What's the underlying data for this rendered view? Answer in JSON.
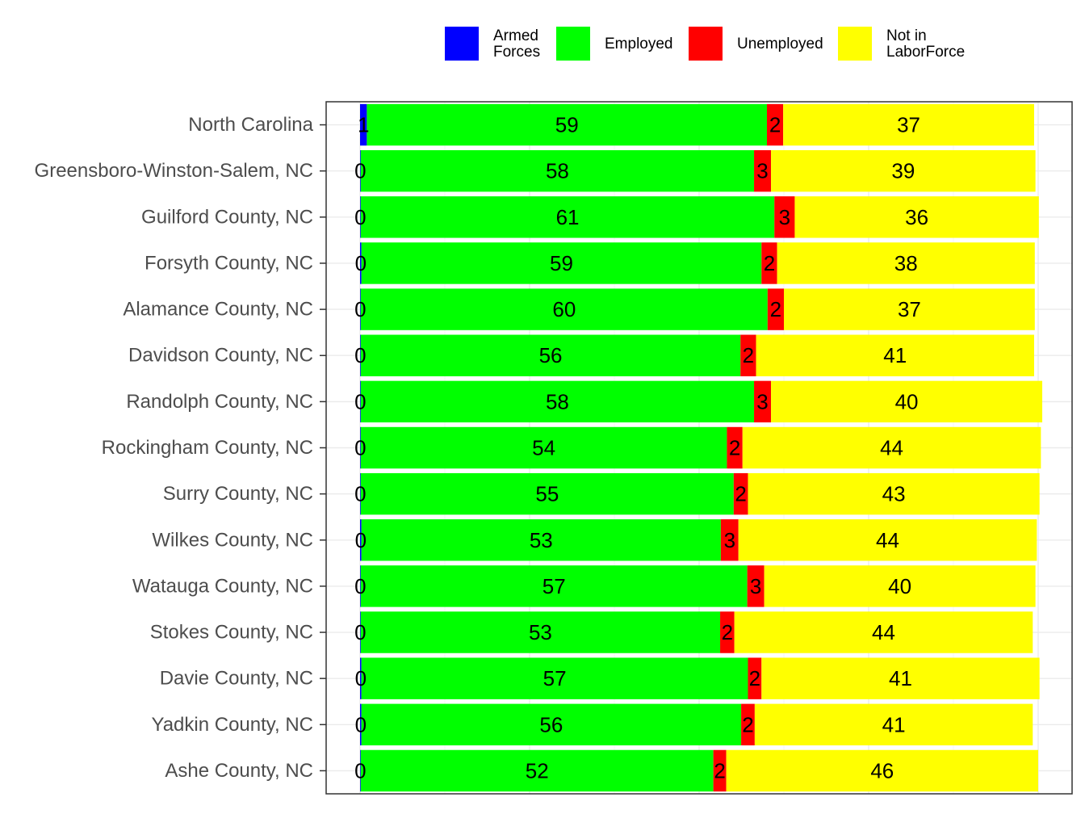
{
  "chart_data": {
    "type": "bar",
    "orientation": "horizontal",
    "stacked": true,
    "categories": [
      "North Carolina",
      "Greensboro-Winston-Salem, NC",
      "Guilford County, NC",
      "Forsyth County, NC",
      "Alamance County, NC",
      "Davidson County, NC",
      "Randolph County, NC",
      "Rockingham County, NC",
      "Surry County, NC",
      "Wilkes County, NC",
      "Watauga County, NC",
      "Stokes County, NC",
      "Davie County, NC",
      "Yadkin County, NC",
      "Ashe County, NC"
    ],
    "series": [
      {
        "name": "Armed Forces",
        "legend_lines": [
          "Armed",
          "Forces"
        ],
        "color": "#0000FF",
        "values": [
          1,
          0.1,
          0.1,
          0.2,
          0.1,
          0.1,
          0.1,
          0.1,
          0.1,
          0.2,
          0.1,
          0.1,
          0.2,
          0.2,
          0.1
        ],
        "labels": [
          "1",
          "0",
          "0",
          "0",
          "0",
          "0",
          "0",
          "0",
          "0",
          "0",
          "0",
          "0",
          "0",
          "0",
          "0"
        ]
      },
      {
        "name": "Employed",
        "legend_lines": [
          "Employed"
        ],
        "color": "#00FF00",
        "values": [
          59,
          58,
          61,
          59,
          60,
          56,
          58,
          54,
          55,
          53,
          57,
          53,
          57,
          56,
          52
        ],
        "labels": [
          "59",
          "58",
          "61",
          "59",
          "60",
          "56",
          "58",
          "54",
          "55",
          "53",
          "57",
          "53",
          "57",
          "56",
          "52"
        ]
      },
      {
        "name": "Unemployed",
        "legend_lines": [
          "Unemployed"
        ],
        "color": "#FF0000",
        "values": [
          2.4,
          2.5,
          3,
          2.3,
          2.4,
          2.3,
          2.5,
          2.3,
          2.1,
          2.6,
          2.5,
          2.1,
          2,
          2,
          1.9
        ],
        "labels": [
          "2",
          "3",
          "3",
          "2",
          "2",
          "2",
          "3",
          "2",
          "2",
          "3",
          "3",
          "2",
          "2",
          "2",
          "2"
        ]
      },
      {
        "name": "Not in LaborForce",
        "legend_lines": [
          "Not in",
          "LaborForce"
        ],
        "color": "#FFFF00",
        "values": [
          37,
          39,
          36,
          38,
          37,
          41,
          40,
          44,
          43,
          44,
          40,
          44,
          41,
          41,
          46
        ],
        "labels": [
          "37",
          "39",
          "36",
          "38",
          "37",
          "41",
          "40",
          "44",
          "43",
          "44",
          "40",
          "44",
          "41",
          "41",
          "46"
        ]
      }
    ],
    "xlim": [
      -5,
      105
    ],
    "xlabel": "",
    "ylabel": "",
    "title": "",
    "legend_position": "top",
    "grid": true
  }
}
